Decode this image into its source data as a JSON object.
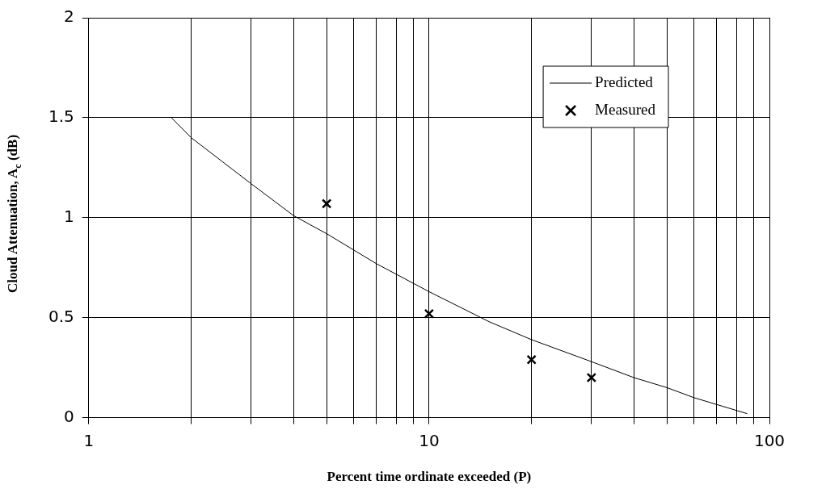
{
  "chart_data": {
    "type": "line",
    "xlabel": "Percent time ordinate exceeded (P)",
    "ylabel": "Cloud Attenuation, A$_{c}$ (dB)",
    "log": "x",
    "grid": true,
    "legend": "top right",
    "xlim": [
      1,
      100
    ],
    "xticks": [
      1,
      {
        "value": 2,
        "label": null
      },
      {
        "value": 3,
        "label": null
      },
      {
        "value": 4,
        "label": null
      },
      {
        "value": 5,
        "label": null
      },
      {
        "value": 6,
        "label": null
      },
      {
        "value": 7,
        "label": null
      },
      {
        "value": 8,
        "label": null
      },
      {
        "value": 9,
        "label": null
      },
      10,
      {
        "value": 20,
        "label": null
      },
      {
        "value": 30,
        "label": null
      },
      {
        "value": 40,
        "label": null
      },
      {
        "value": 50,
        "label": null
      },
      {
        "value": 60,
        "label": null
      },
      {
        "value": 70,
        "label": null
      },
      {
        "value": 80,
        "label": null
      },
      {
        "value": 90,
        "label": null
      },
      100
    ],
    "ylim": [
      0,
      2
    ],
    "yticks": [
      0,
      0.5,
      1,
      1.5,
      2
    ],
    "series": [
      {
        "name": "Predicted",
        "type": "line",
        "color": "#000000",
        "marker": "none",
        "x": [
          1.75,
          2,
          3,
          4,
          5,
          7,
          10,
          15,
          20,
          30,
          40,
          50,
          60,
          86
        ],
        "values": [
          1.5,
          1.4,
          1.17,
          1.01,
          0.92,
          0.77,
          0.63,
          0.48,
          0.39,
          0.28,
          0.2,
          0.15,
          0.1,
          0.02
        ]
      },
      {
        "name": "Measured",
        "type": "scatter",
        "color": "#000000",
        "marker": "cross",
        "x": [
          5,
          10,
          20,
          30
        ],
        "values": [
          1.07,
          0.52,
          0.29,
          0.2
        ]
      }
    ]
  }
}
